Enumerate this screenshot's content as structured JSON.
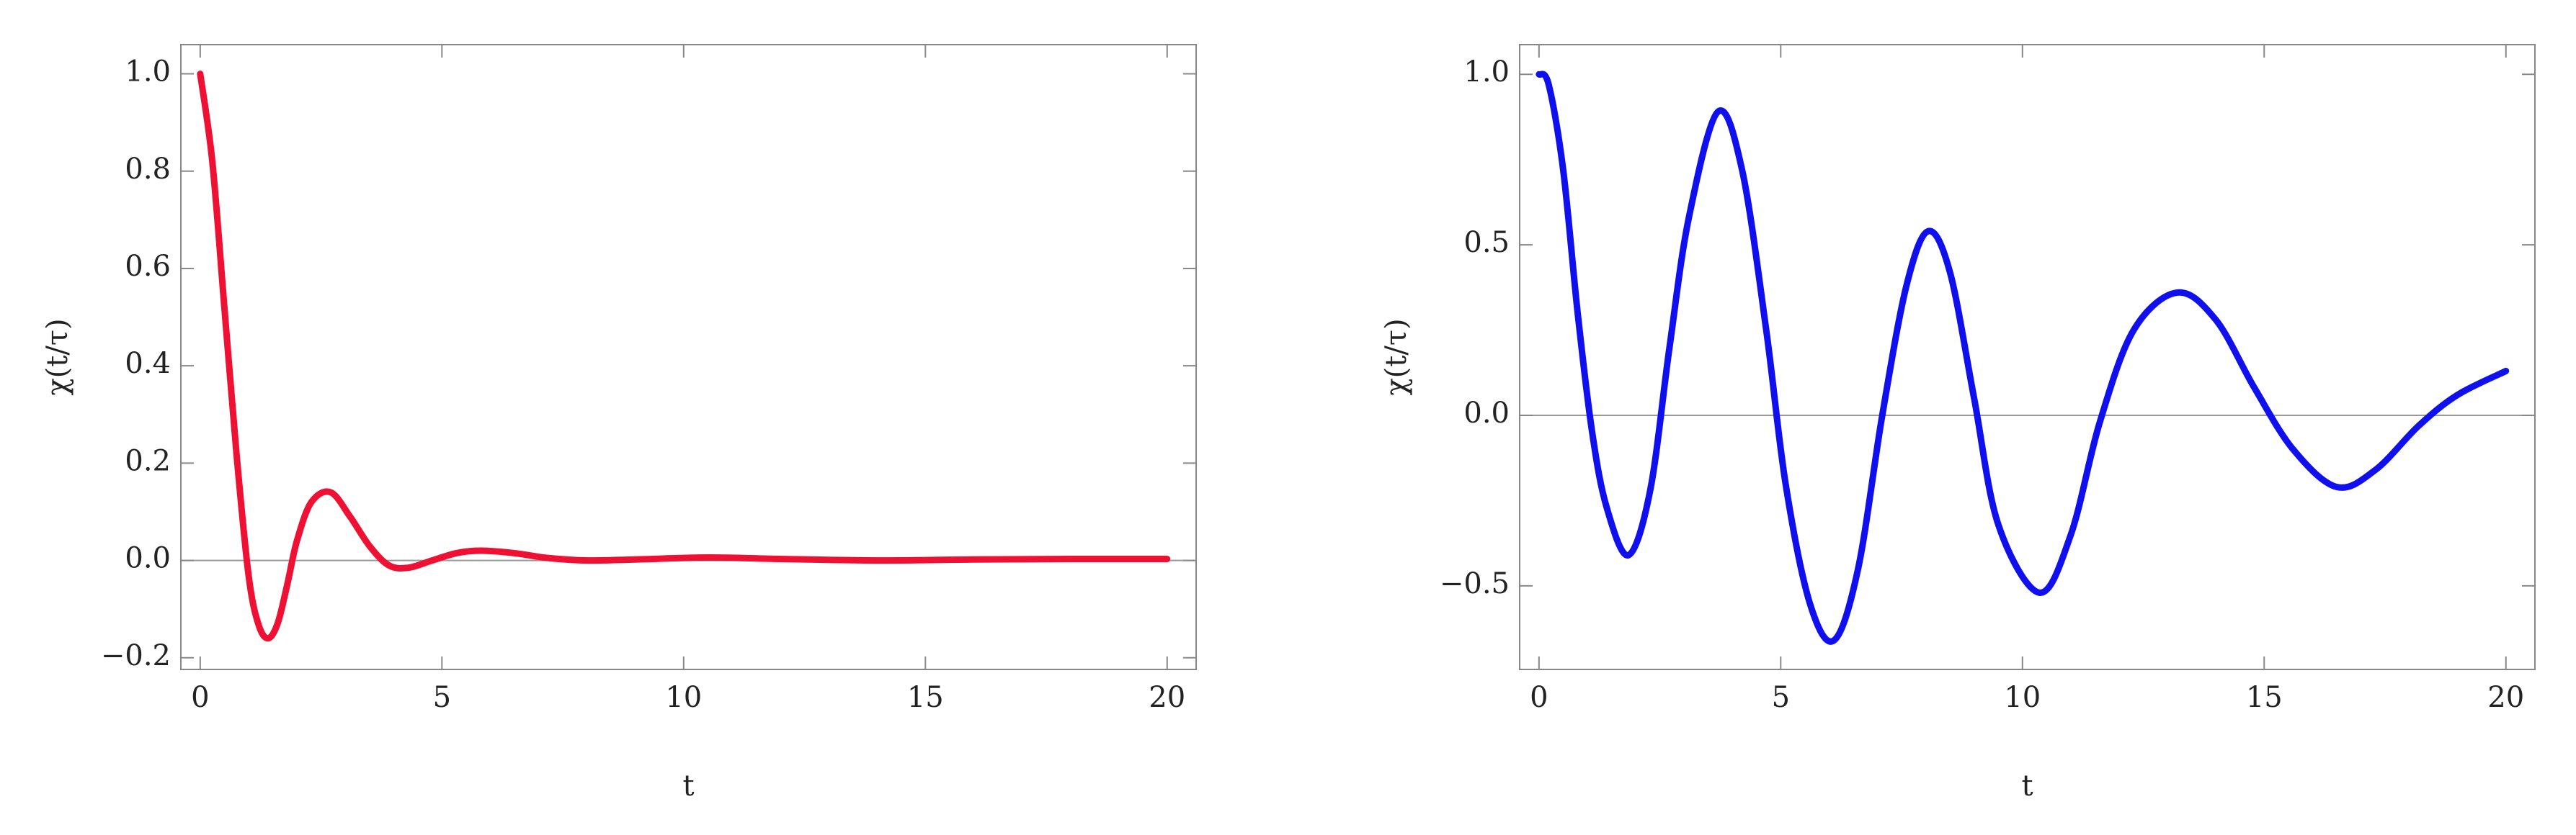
{
  "chart_data": [
    {
      "type": "line",
      "xlabel": "t",
      "ylabel": "χ(t/τ)",
      "color": "#ee1133",
      "zero_line": true,
      "x": [
        0,
        0.25,
        0.5,
        0.75,
        1,
        1.2,
        1.4,
        1.6,
        1.8,
        2,
        2.3,
        2.7,
        3.1,
        3.5,
        3.9,
        4.3,
        4.8,
        5.3,
        5.8,
        6.5,
        7.2,
        8,
        9,
        10.5,
        12,
        14,
        16,
        18,
        20
      ],
      "values": [
        1.0,
        0.82,
        0.52,
        0.22,
        -0.03,
        -0.13,
        -0.16,
        -0.13,
        -0.05,
        0.04,
        0.12,
        0.14,
        0.09,
        0.03,
        -0.01,
        -0.015,
        0.0,
        0.015,
        0.02,
        0.015,
        0.005,
        0.0,
        0.002,
        0.006,
        0.003,
        0.0,
        0.002,
        0.003,
        0.003
      ],
      "xlim": [
        -0.4,
        20.6
      ],
      "ylim": [
        -0.224,
        1.06
      ],
      "xticks": [
        0,
        5,
        10,
        15,
        20
      ],
      "yticks": [
        {
          "value": -0.2,
          "label": "−0.2"
        },
        {
          "value": 0,
          "label": "0.0"
        },
        {
          "value": 0.2,
          "label": "0.2"
        },
        {
          "value": 0.4,
          "label": "0.4"
        },
        {
          "value": 0.6,
          "label": "0.6"
        },
        {
          "value": 0.8,
          "label": "0.8"
        },
        {
          "value": 1.0,
          "label": "1.0"
        }
      ]
    },
    {
      "type": "line",
      "xlabel": "t",
      "ylabel": "χ(t/τ)",
      "color": "#1010ee",
      "zero_line": true,
      "x": [
        0,
        0.2,
        0.5,
        0.8,
        1.1,
        1.4,
        1.85,
        2.3,
        2.7,
        3.1,
        3.7,
        4.2,
        4.7,
        5.1,
        5.6,
        6.1,
        6.6,
        7.1,
        7.6,
        8.05,
        8.5,
        9,
        9.5,
        10.35,
        11,
        11.6,
        12.3,
        13.2,
        14,
        14.8,
        15.6,
        16.5,
        17.3,
        18.2,
        19,
        20
      ],
      "values": [
        1.0,
        0.97,
        0.72,
        0.3,
        -0.05,
        -0.27,
        -0.41,
        -0.22,
        0.2,
        0.58,
        0.89,
        0.72,
        0.25,
        -0.2,
        -0.55,
        -0.66,
        -0.45,
        0.0,
        0.38,
        0.54,
        0.42,
        0.05,
        -0.32,
        -0.52,
        -0.35,
        -0.02,
        0.25,
        0.36,
        0.28,
        0.08,
        -0.1,
        -0.21,
        -0.16,
        -0.03,
        0.06,
        0.13
      ],
      "xlim": [
        -0.4,
        20.6
      ],
      "ylim": [
        -0.745,
        1.087
      ],
      "xticks": [
        0,
        5,
        10,
        15,
        20
      ],
      "yticks": [
        {
          "value": -0.5,
          "label": "−0.5"
        },
        {
          "value": 0,
          "label": "0.0"
        },
        {
          "value": 0.5,
          "label": "0.5"
        },
        {
          "value": 1.0,
          "label": "1.0"
        }
      ]
    }
  ]
}
